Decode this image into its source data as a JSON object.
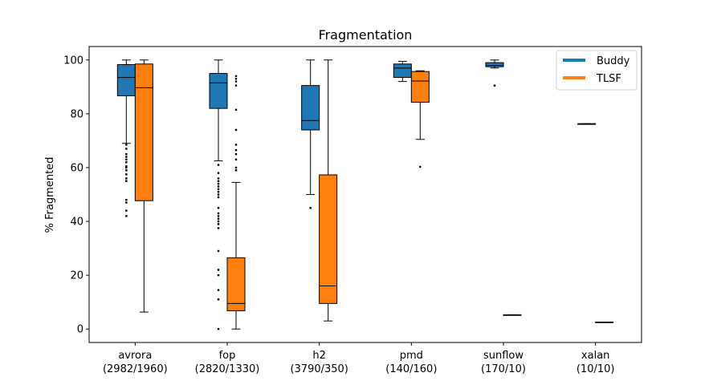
{
  "chart_data": {
    "type": "boxplot",
    "title": "Fragmentation",
    "xlabel": "",
    "ylabel": "% Fragmented",
    "ylim": [
      -5,
      105
    ],
    "yticks": [
      0,
      20,
      40,
      60,
      80,
      100
    ],
    "grid": false,
    "legend_position": "top-right",
    "categories": [
      {
        "name": "avrora",
        "counts": "(2982/1960)"
      },
      {
        "name": "fop",
        "counts": "(2820/1330)"
      },
      {
        "name": "h2",
        "counts": "(3790/350)"
      },
      {
        "name": "pmd",
        "counts": "(140/160)"
      },
      {
        "name": "sunflow",
        "counts": "(170/10)"
      },
      {
        "name": "xalan",
        "counts": "(10/10)"
      }
    ],
    "series": [
      {
        "name": "Buddy",
        "color": "#1f77b4",
        "boxes": [
          {
            "whislo": 69,
            "q1": 86.7,
            "med": 93.5,
            "q3": 98.3,
            "whishi": 100,
            "fliers": [
              68.5,
              67,
              65,
              64,
              63,
              62,
              60.5,
              60,
              59,
              57.5,
              56,
              55,
              48,
              47,
              44,
              42
            ]
          },
          {
            "whislo": 62.5,
            "q1": 82,
            "med": 91.5,
            "q3": 95,
            "whishi": 100,
            "fliers": [
              61,
              58,
              56,
              55,
              54,
              53,
              52,
              51,
              50,
              49,
              45,
              43,
              42,
              41,
              40,
              39,
              37.5,
              29,
              22,
              20,
              14.5,
              11,
              0
            ]
          },
          {
            "whislo": 50,
            "q1": 74,
            "med": 77.5,
            "q3": 90.5,
            "whishi": 100,
            "fliers": [
              45
            ]
          },
          {
            "whislo": 92,
            "q1": 93.5,
            "med": 97,
            "q3": 98.5,
            "whishi": 99.5,
            "fliers": []
          },
          {
            "whislo": 97,
            "q1": 97.5,
            "med": 98,
            "q3": 99,
            "whishi": 100,
            "fliers": [
              90.5
            ]
          },
          {
            "whislo": 76.3,
            "q1": 76.3,
            "med": 76.3,
            "q3": 76.3,
            "whishi": 76.3,
            "fliers": []
          }
        ]
      },
      {
        "name": "TLSF",
        "color": "#ff7f0e",
        "boxes": [
          {
            "whislo": 6.3,
            "q1": 47.7,
            "med": 89.7,
            "q3": 98.5,
            "whishi": 100,
            "fliers": []
          },
          {
            "whislo": 0,
            "q1": 6.8,
            "med": 9.5,
            "q3": 26.5,
            "whishi": 54.5,
            "fliers": [
              59,
              60,
              63,
              65,
              66.5,
              68.5,
              74,
              81.5,
              90.5,
              92,
              93,
              94
            ]
          },
          {
            "whislo": 3,
            "q1": 9.5,
            "med": 16,
            "q3": 57.3,
            "whishi": 100,
            "fliers": []
          },
          {
            "whislo": 70.5,
            "q1": 84.3,
            "med": 92.2,
            "q3": 95.7,
            "whishi": 96,
            "fliers": [
              60.3
            ]
          },
          {
            "whislo": 5.3,
            "q1": 5.3,
            "med": 5.3,
            "q3": 5.3,
            "whishi": 5.3,
            "fliers": []
          },
          {
            "whislo": 2.6,
            "q1": 2.6,
            "med": 2.6,
            "q3": 2.6,
            "whishi": 2.6,
            "fliers": []
          }
        ]
      }
    ]
  }
}
